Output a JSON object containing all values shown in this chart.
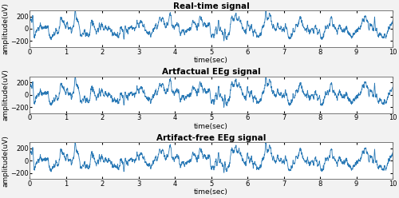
{
  "titles": [
    "Real-time signal",
    "Artfactual EEg signal",
    "Artifact-free EEg signal"
  ],
  "xlabel": "time(sec)",
  "ylabel": "amplitude(uV)",
  "xlim": [
    0,
    10
  ],
  "ylim": [
    -300,
    300
  ],
  "yticks": [
    -200,
    0,
    200
  ],
  "xticks": [
    0,
    1,
    2,
    3,
    4,
    5,
    6,
    7,
    8,
    9,
    10
  ],
  "line_color": "#2878b5",
  "line_width": 0.6,
  "background_color": "#ffffff",
  "fig_background": "#f2f2f2",
  "n_samples": 2500,
  "seed": 42,
  "title_fontsize": 7.5,
  "label_fontsize": 6.5,
  "tick_fontsize": 6
}
